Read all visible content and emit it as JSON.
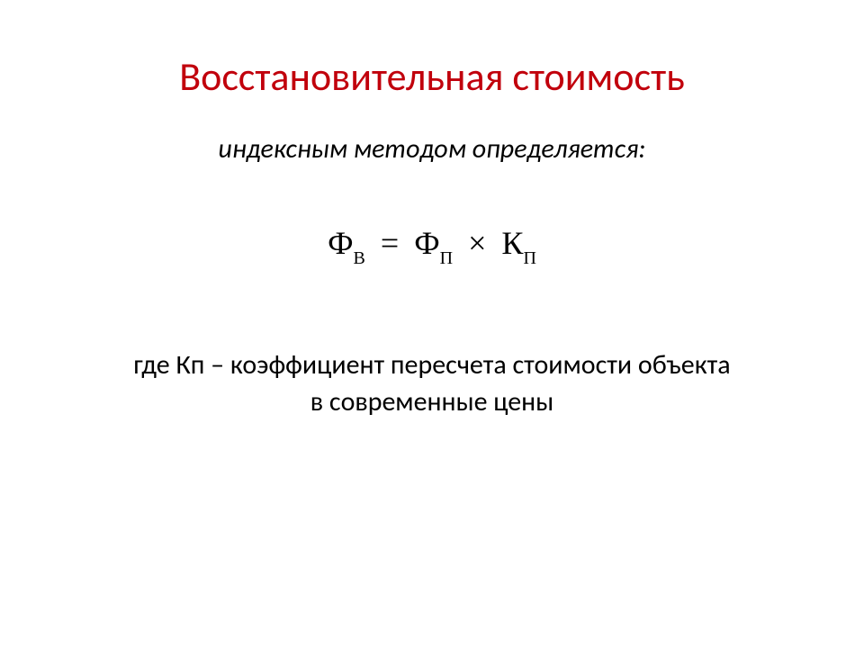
{
  "title": {
    "text": "Восстановительная стоимость",
    "color": "#c1000c"
  },
  "subtitle": {
    "text": "индексным методом определяется:",
    "color": "#000000"
  },
  "formula": {
    "phi1": "Ф",
    "sub1": "В",
    "eq": "=",
    "phi2": "Ф",
    "sub2": "П",
    "times": "×",
    "k": "К",
    "sub3": "П",
    "color": "#000000"
  },
  "description": {
    "line1": "где Кп – коэффициент пересчета стоимости объекта",
    "line2": "в современные цены",
    "color": "#000000"
  },
  "background_color": "#ffffff"
}
